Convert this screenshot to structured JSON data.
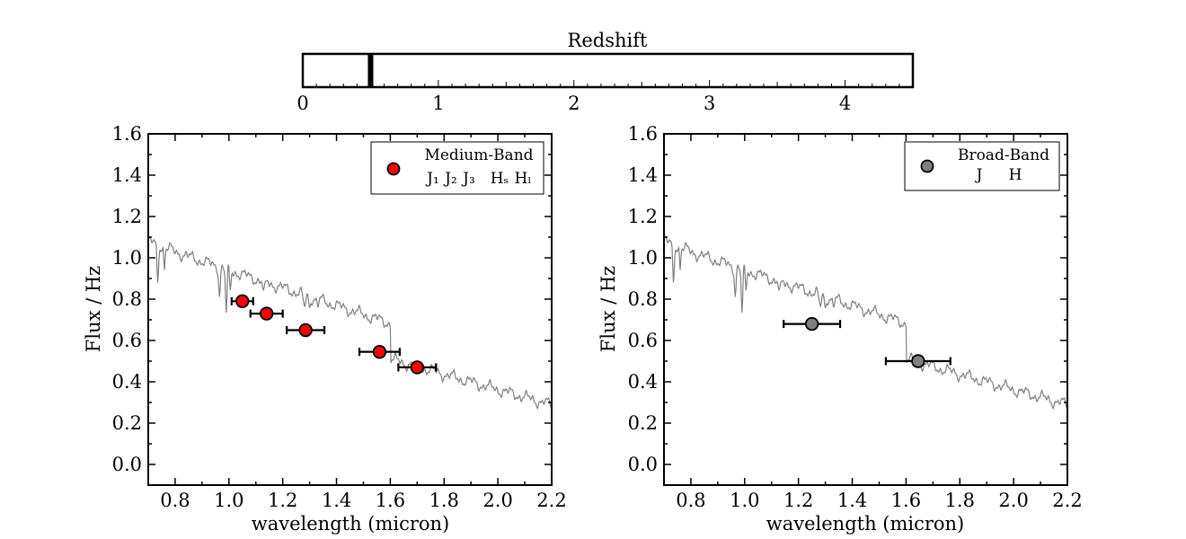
{
  "slider": {
    "label": "Redshift",
    "range": [
      0,
      4.5
    ],
    "value": 0.5,
    "ticks": [
      {
        "value": 0,
        "label": "0"
      },
      {
        "value": 1,
        "label": "1"
      },
      {
        "value": 2,
        "label": "2"
      },
      {
        "value": 3,
        "label": "3"
      },
      {
        "value": 4,
        "label": "4"
      }
    ]
  },
  "chart_data": [
    {
      "type": "scatter",
      "xlabel": "wavelength (micron)",
      "ylabel": "Flux / Hz",
      "xlim": [
        0.7,
        2.2
      ],
      "ylim": [
        -0.1,
        1.6
      ],
      "xticks": [
        "0.8",
        "1.0",
        "1.2",
        "1.4",
        "1.6",
        "1.8",
        "2.0",
        "2.2"
      ],
      "yticks": [
        "0.0",
        "0.2",
        "0.4",
        "0.6",
        "0.8",
        "1.0",
        "1.2",
        "1.4",
        "1.6"
      ],
      "grid": false,
      "legend": {
        "placement": "top-right",
        "title": "Medium-Band",
        "labels": [
          "J₁",
          "J₂",
          "J₃",
          "Hₛ",
          "Hₗ"
        ]
      },
      "series": [
        {
          "marker_color": "#ff0000",
          "points": [
            {
              "x": 1.05,
              "y": 0.79,
              "xerr": 0.04
            },
            {
              "x": 1.14,
              "y": 0.73,
              "xerr": 0.06
            },
            {
              "x": 1.285,
              "y": 0.65,
              "xerr": 0.07
            },
            {
              "x": 1.56,
              "y": 0.545,
              "xerr": 0.075
            },
            {
              "x": 1.7,
              "y": 0.47,
              "xerr": 0.07
            }
          ]
        }
      ],
      "spectrum_color": "#808080"
    },
    {
      "type": "scatter",
      "xlabel": "wavelength (micron)",
      "ylabel": "Flux / Hz",
      "xlim": [
        0.7,
        2.2
      ],
      "ylim": [
        -0.1,
        1.6
      ],
      "xticks": [
        "0.8",
        "1.0",
        "1.2",
        "1.4",
        "1.6",
        "1.8",
        "2.0",
        "2.2"
      ],
      "yticks": [
        "0.0",
        "0.2",
        "0.4",
        "0.6",
        "0.8",
        "1.0",
        "1.2",
        "1.4",
        "1.6"
      ],
      "grid": false,
      "legend": {
        "placement": "top-right",
        "title": "Broad-Band",
        "labels": [
          "J",
          "H"
        ]
      },
      "series": [
        {
          "marker_color": "#808080",
          "points": [
            {
              "x": 1.25,
              "y": 0.68,
              "xerr": 0.105
            },
            {
              "x": 1.645,
              "y": 0.5,
              "xerr": 0.12
            }
          ]
        }
      ],
      "spectrum_color": "#808080"
    }
  ]
}
